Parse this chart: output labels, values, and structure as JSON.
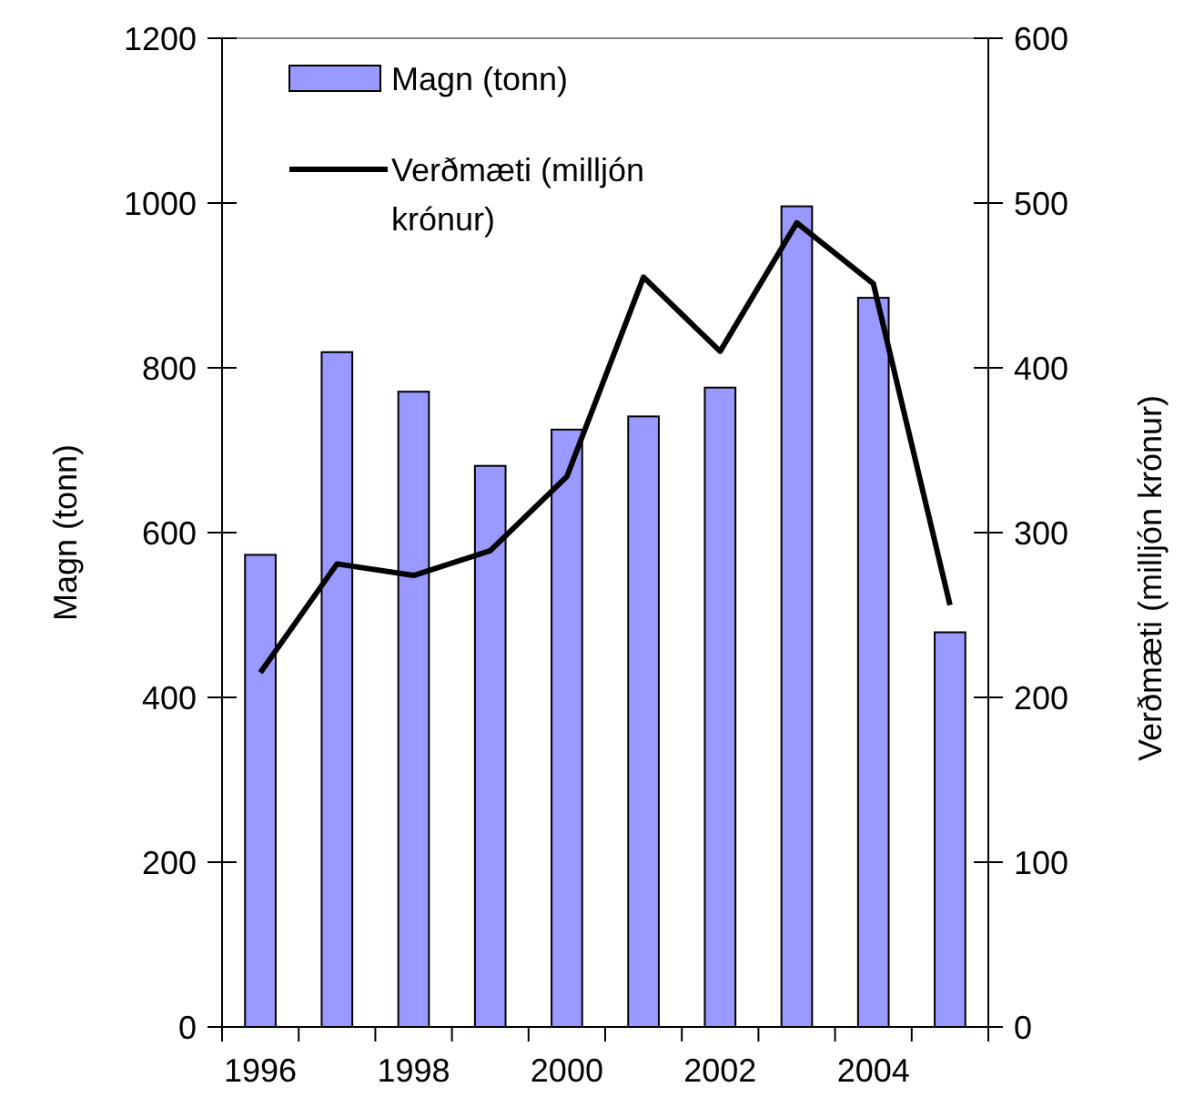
{
  "chart_data": {
    "type": "bar",
    "categories": [
      "1996",
      null,
      "1998",
      null,
      "2000",
      null,
      "2002",
      null,
      "2004",
      null
    ],
    "series": [
      {
        "name": "Magn (tonn)",
        "color": "#9999ff",
        "values": [
          573,
          819,
          771,
          681,
          725,
          741,
          776,
          996,
          885,
          479
        ]
      },
      {
        "name": "Verðmæti (milljón krónur)",
        "type": "line",
        "axis": "y2",
        "color": "#000000",
        "values": [
          215,
          281,
          274,
          289,
          334,
          455,
          410,
          488,
          451,
          256
        ]
      }
    ],
    "ylabel": "Magn (tonn)",
    "y2label": "Verðmæti (milljón krónur)",
    "ylim": [
      0,
      1200
    ],
    "yticks": [
      0,
      200,
      400,
      600,
      800,
      1000,
      1200
    ],
    "y2lim": [
      0,
      600
    ],
    "y2ticks": [
      0,
      100,
      200,
      300,
      400,
      500,
      600
    ],
    "legend": "top left",
    "grid": false,
    "marker": "none",
    "line_style": "solid"
  }
}
